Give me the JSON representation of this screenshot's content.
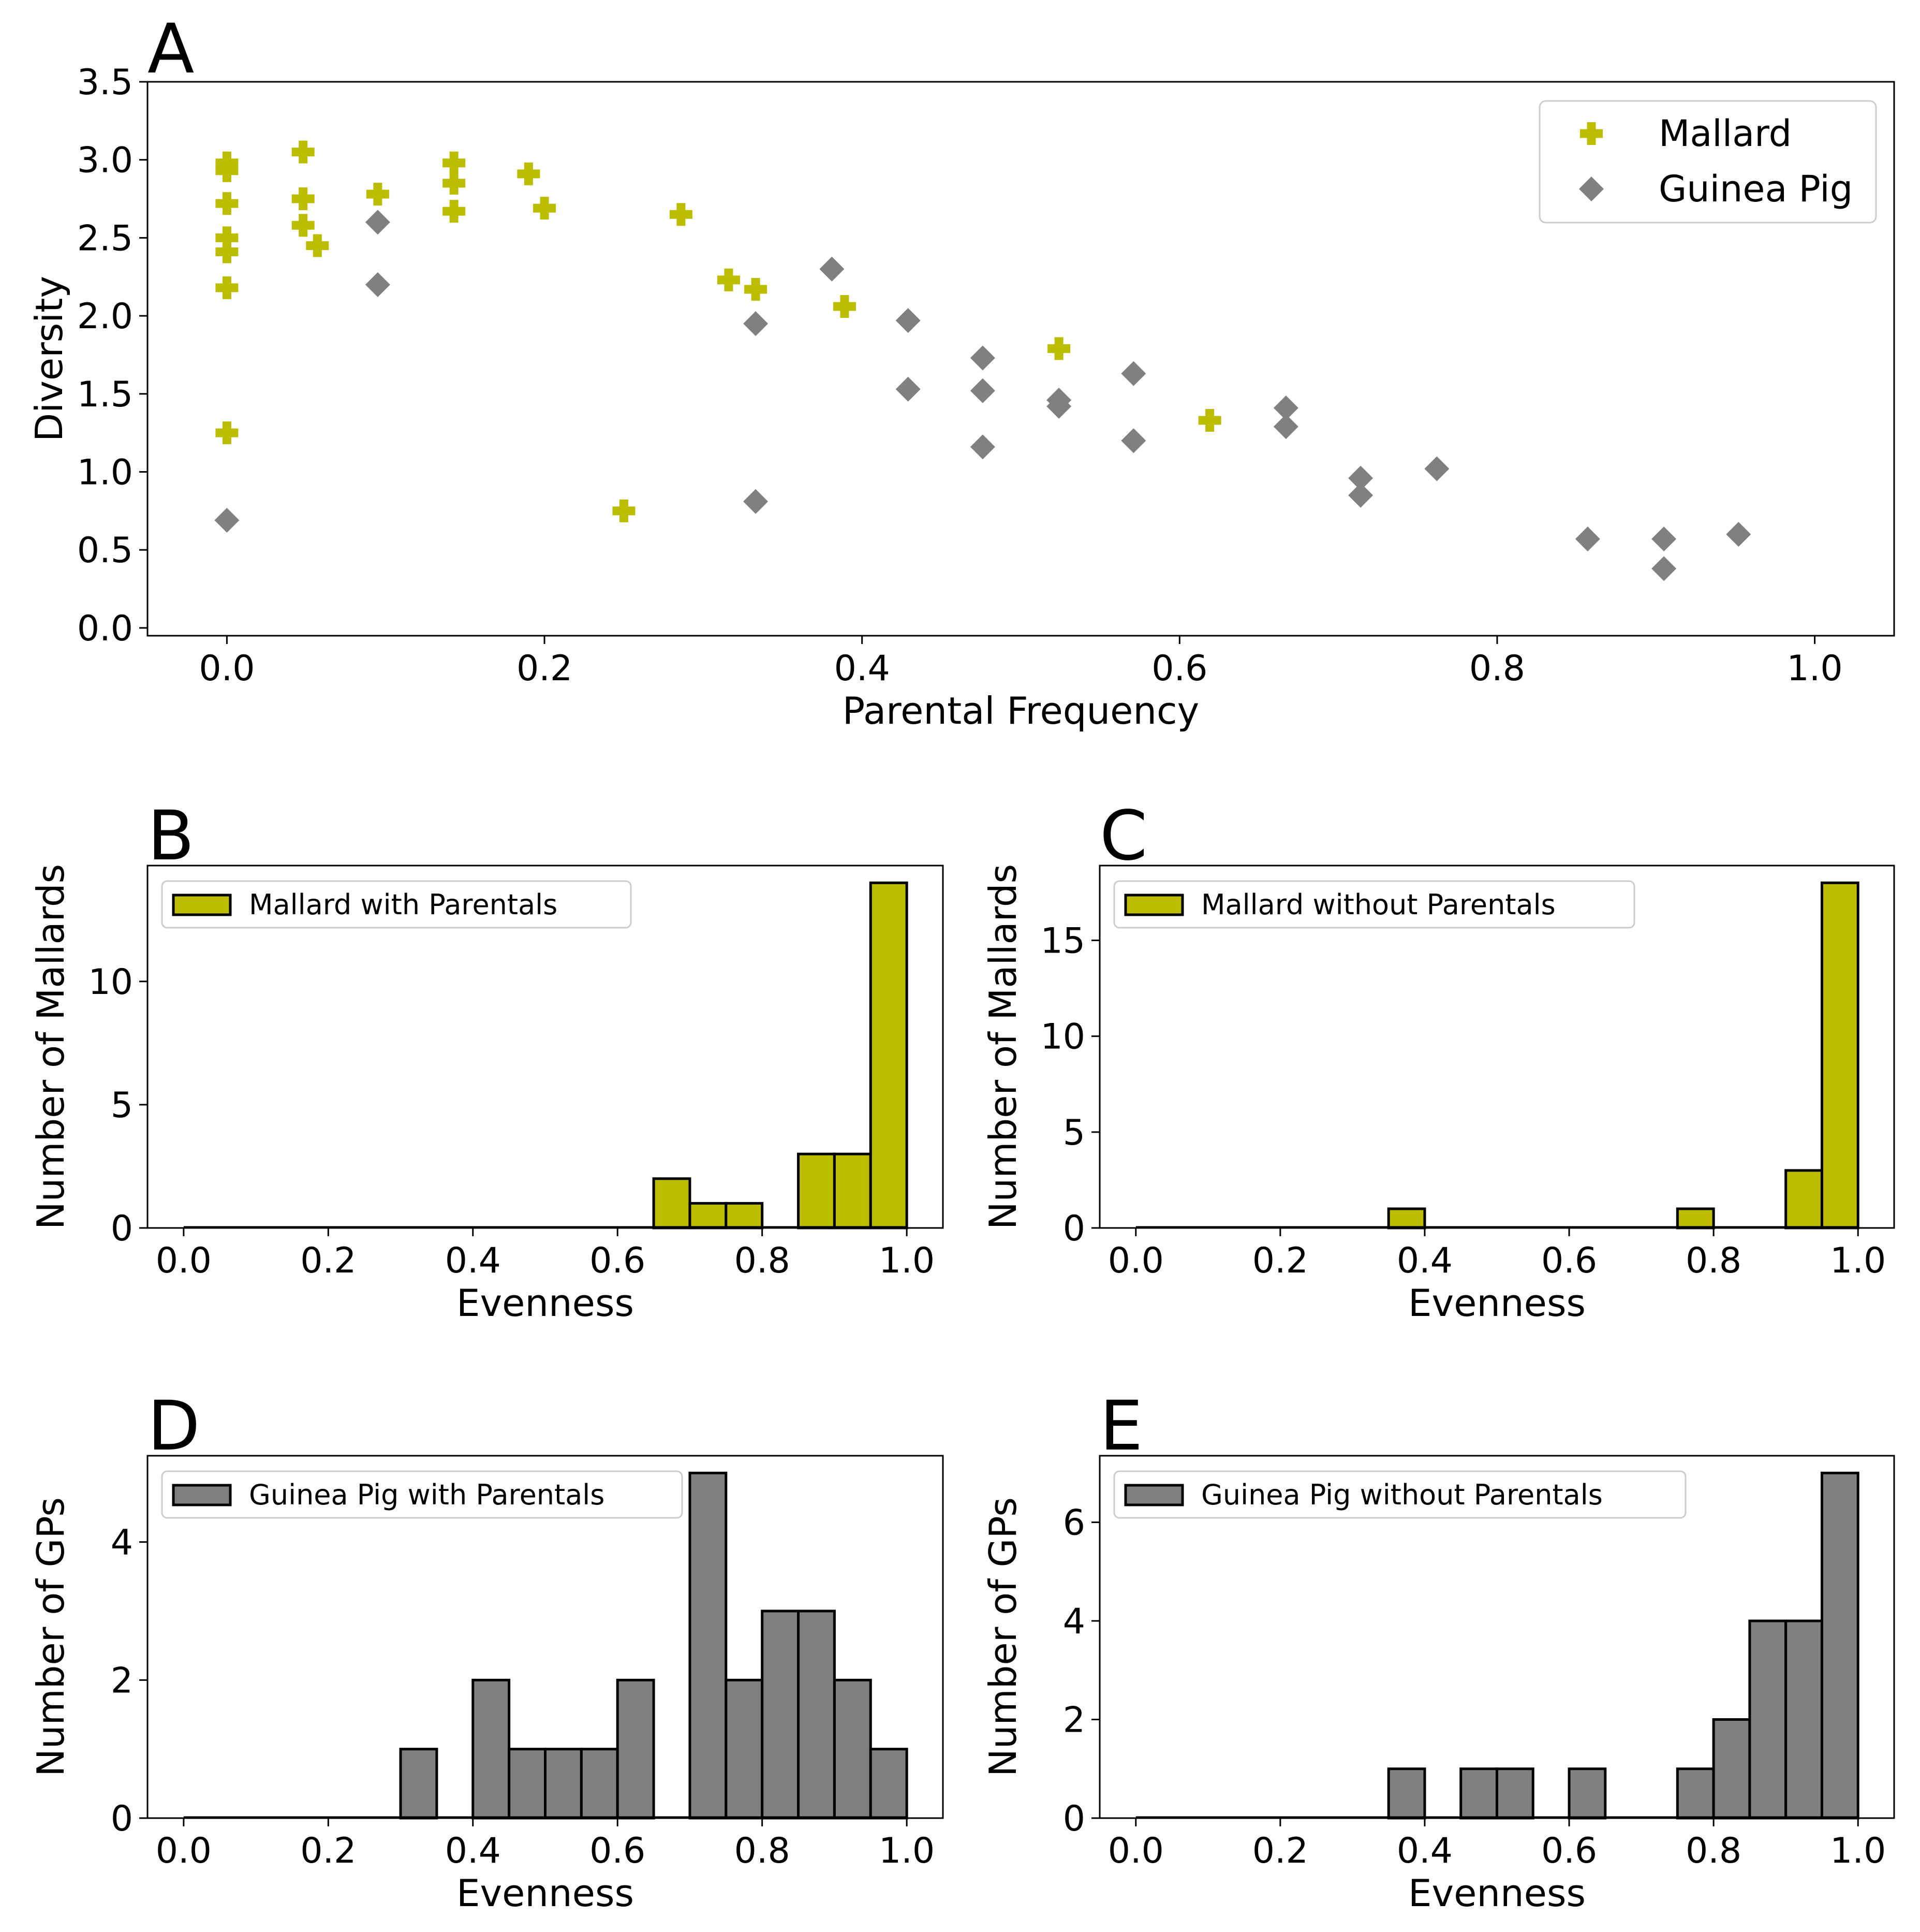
{
  "colors": {
    "mallard": "#bdbd00",
    "guinea_pig": "#808080",
    "bar_edge": "#000000",
    "legend_edge": "#cccccc"
  },
  "chart_data": [
    {
      "panel": "A",
      "type": "scatter",
      "xlabel": "Parental Frequency",
      "ylabel": "Diversity",
      "xlim": [
        -0.05,
        1.05
      ],
      "ylim": [
        -0.05,
        3.5
      ],
      "xticks": [
        "0.0",
        "0.2",
        "0.4",
        "0.6",
        "0.8",
        "1.0"
      ],
      "yticks": [
        "0.0",
        "0.5",
        "1.0",
        "1.5",
        "2.0",
        "2.5",
        "3.0",
        "3.5"
      ],
      "legend_position": "top-right",
      "series": [
        {
          "name": "Mallard",
          "marker": "plus",
          "color": "#bdbd00",
          "points": [
            [
              0.0,
              2.98
            ],
            [
              0.0,
              2.93
            ],
            [
              0.0,
              2.72
            ],
            [
              0.0,
              2.5
            ],
            [
              0.0,
              2.41
            ],
            [
              0.0,
              2.18
            ],
            [
              0.0,
              1.25
            ],
            [
              0.048,
              3.05
            ],
            [
              0.048,
              2.75
            ],
            [
              0.048,
              2.58
            ],
            [
              0.057,
              2.45
            ],
            [
              0.095,
              2.78
            ],
            [
              0.143,
              2.98
            ],
            [
              0.143,
              2.85
            ],
            [
              0.143,
              2.67
            ],
            [
              0.19,
              2.91
            ],
            [
              0.2,
              2.69
            ],
            [
              0.25,
              0.75
            ],
            [
              0.286,
              2.65
            ],
            [
              0.316,
              2.23
            ],
            [
              0.333,
              2.17
            ],
            [
              0.389,
              2.06
            ],
            [
              0.524,
              1.79
            ],
            [
              0.619,
              1.33
            ]
          ]
        },
        {
          "name": "Guinea Pig",
          "marker": "diamond",
          "color": "#808080",
          "points": [
            [
              0.0,
              0.69
            ],
            [
              0.095,
              2.6
            ],
            [
              0.095,
              2.2
            ],
            [
              0.333,
              1.95
            ],
            [
              0.333,
              0.81
            ],
            [
              0.381,
              2.3
            ],
            [
              0.429,
              1.97
            ],
            [
              0.429,
              1.53
            ],
            [
              0.476,
              1.73
            ],
            [
              0.476,
              1.52
            ],
            [
              0.476,
              1.16
            ],
            [
              0.524,
              1.46
            ],
            [
              0.524,
              1.42
            ],
            [
              0.571,
              1.63
            ],
            [
              0.571,
              1.2
            ],
            [
              0.667,
              1.41
            ],
            [
              0.667,
              1.29
            ],
            [
              0.714,
              0.96
            ],
            [
              0.714,
              0.85
            ],
            [
              0.762,
              1.02
            ],
            [
              0.857,
              0.57
            ],
            [
              0.905,
              0.57
            ],
            [
              0.905,
              0.38
            ],
            [
              0.952,
              0.6
            ]
          ]
        }
      ]
    },
    {
      "panel": "B",
      "type": "bar",
      "xlabel": "Evenness",
      "ylabel": "Number of Mallards",
      "legend_label": "Mallard with Parentals",
      "legend_position": "top-left",
      "color": "#bdbd00",
      "bin_width": 0.05,
      "xlim": [
        -0.05,
        1.05
      ],
      "ylim": [
        0,
        14.7
      ],
      "xticks": [
        "0.0",
        "0.2",
        "0.4",
        "0.6",
        "0.8",
        "1.0"
      ],
      "yticks": [
        "0",
        "5",
        "10"
      ],
      "bins": [
        {
          "x0": 0.65,
          "count": 2
        },
        {
          "x0": 0.7,
          "count": 1
        },
        {
          "x0": 0.75,
          "count": 1
        },
        {
          "x0": 0.85,
          "count": 3
        },
        {
          "x0": 0.9,
          "count": 3
        },
        {
          "x0": 0.95,
          "count": 14
        }
      ]
    },
    {
      "panel": "C",
      "type": "bar",
      "xlabel": "Evenness",
      "ylabel": "Number of Mallards",
      "legend_label": "Mallard without Parentals",
      "legend_position": "top-left",
      "color": "#bdbd00",
      "bin_width": 0.05,
      "xlim": [
        -0.05,
        1.05
      ],
      "ylim": [
        0,
        18.9
      ],
      "xticks": [
        "0.0",
        "0.2",
        "0.4",
        "0.6",
        "0.8",
        "1.0"
      ],
      "yticks": [
        "0",
        "5",
        "10",
        "15"
      ],
      "bins": [
        {
          "x0": 0.35,
          "count": 1
        },
        {
          "x0": 0.75,
          "count": 1
        },
        {
          "x0": 0.9,
          "count": 3
        },
        {
          "x0": 0.95,
          "count": 18
        }
      ]
    },
    {
      "panel": "D",
      "type": "bar",
      "xlabel": "Evenness",
      "ylabel": "Number of GPs",
      "legend_label": "Guinea Pig with Parentals",
      "legend_position": "top-left",
      "color": "#808080",
      "bin_width": 0.05,
      "xlim": [
        -0.05,
        1.05
      ],
      "ylim": [
        0,
        5.25
      ],
      "xticks": [
        "0.0",
        "0.2",
        "0.4",
        "0.6",
        "0.8",
        "1.0"
      ],
      "yticks": [
        "0",
        "2",
        "4"
      ],
      "bins": [
        {
          "x0": 0.3,
          "count": 1
        },
        {
          "x0": 0.4,
          "count": 2
        },
        {
          "x0": 0.45,
          "count": 1
        },
        {
          "x0": 0.5,
          "count": 1
        },
        {
          "x0": 0.55,
          "count": 1
        },
        {
          "x0": 0.6,
          "count": 2
        },
        {
          "x0": 0.7,
          "count": 5
        },
        {
          "x0": 0.75,
          "count": 2
        },
        {
          "x0": 0.8,
          "count": 3
        },
        {
          "x0": 0.85,
          "count": 3
        },
        {
          "x0": 0.9,
          "count": 2
        },
        {
          "x0": 0.95,
          "count": 1
        }
      ]
    },
    {
      "panel": "E",
      "type": "bar",
      "xlabel": "Evenness",
      "ylabel": "Number of GPs",
      "legend_label": "Guinea Pig without Parentals",
      "legend_position": "top-left",
      "color": "#808080",
      "bin_width": 0.05,
      "xlim": [
        -0.05,
        1.05
      ],
      "ylim": [
        0,
        7.35
      ],
      "xticks": [
        "0.0",
        "0.2",
        "0.4",
        "0.6",
        "0.8",
        "1.0"
      ],
      "yticks": [
        "0",
        "2",
        "4",
        "6"
      ],
      "bins": [
        {
          "x0": 0.35,
          "count": 1
        },
        {
          "x0": 0.45,
          "count": 1
        },
        {
          "x0": 0.5,
          "count": 1
        },
        {
          "x0": 0.6,
          "count": 1
        },
        {
          "x0": 0.75,
          "count": 1
        },
        {
          "x0": 0.8,
          "count": 2
        },
        {
          "x0": 0.85,
          "count": 4
        },
        {
          "x0": 0.9,
          "count": 4
        },
        {
          "x0": 0.95,
          "count": 7
        }
      ]
    }
  ]
}
